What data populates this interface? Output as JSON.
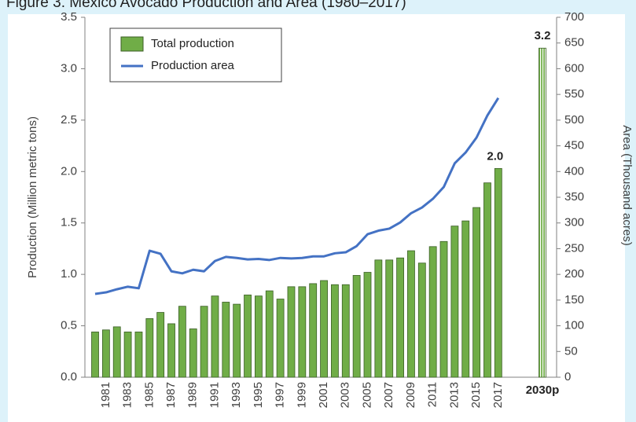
{
  "chart_data": {
    "type": "bar_line",
    "title": "Figure 3. Mexico Avocado Production and Area (1980–2017)",
    "ylabel": "Production (Million metric tons)",
    "y2label": "Area (Thousand acres)",
    "categories": [
      null,
      "1981",
      null,
      "1983",
      null,
      "1985",
      null,
      "1987",
      null,
      "1989",
      null,
      "1991",
      null,
      "1993",
      null,
      "1995",
      null,
      "1997",
      null,
      "1999",
      null,
      "2001",
      null,
      "2003",
      null,
      "2005",
      null,
      "2007",
      null,
      "2009",
      null,
      "2011",
      null,
      "2013",
      null,
      "2015",
      null,
      "2017",
      "2030p"
    ],
    "series": [
      {
        "name": "Total production",
        "type": "bar",
        "color": "#70ad47",
        "values": [
          0.44,
          0.46,
          0.49,
          0.44,
          0.44,
          0.57,
          0.63,
          0.52,
          0.69,
          0.47,
          0.69,
          0.79,
          0.73,
          0.71,
          0.8,
          0.79,
          0.84,
          0.76,
          0.88,
          0.88,
          0.91,
          0.94,
          0.9,
          0.9,
          0.99,
          1.02,
          1.14,
          1.14,
          1.16,
          1.23,
          1.11,
          1.27,
          1.32,
          1.47,
          1.52,
          1.65,
          1.89,
          2.03,
          3.2
        ],
        "value_labels": [
          null,
          null,
          null,
          null,
          null,
          null,
          null,
          null,
          null,
          null,
          null,
          null,
          null,
          null,
          null,
          null,
          null,
          null,
          null,
          null,
          null,
          null,
          null,
          null,
          null,
          null,
          null,
          null,
          null,
          null,
          null,
          null,
          null,
          null,
          null,
          null,
          null,
          "2.0",
          "3.2"
        ]
      },
      {
        "name": "Production area",
        "type": "line",
        "axis": "y2",
        "color": "#4472c4",
        "values": [
          162,
          165,
          171,
          176,
          173,
          246,
          240,
          206,
          202,
          209,
          206,
          226,
          234,
          232,
          229,
          230,
          228,
          232,
          231,
          232,
          235,
          235,
          241,
          243,
          255,
          278,
          285,
          289,
          301,
          319,
          330,
          347,
          370,
          416,
          437,
          466,
          509,
          543,
          null
        ]
      }
    ],
    "ylim": [
      0,
      3.5
    ],
    "yticks": [
      {
        "value": 0,
        "label": "0.0"
      },
      0.5,
      {
        "value": 1,
        "label": "1.0"
      },
      1.5,
      {
        "value": 2,
        "label": "2.0"
      },
      2.5,
      {
        "value": 3,
        "label": "3.0"
      },
      3.5
    ],
    "y2lim": [
      0,
      700
    ],
    "y2ticks": [
      0,
      50,
      100,
      150,
      200,
      250,
      300,
      350,
      400,
      450,
      500,
      550,
      600,
      650,
      700
    ],
    "legend": "upper left"
  }
}
